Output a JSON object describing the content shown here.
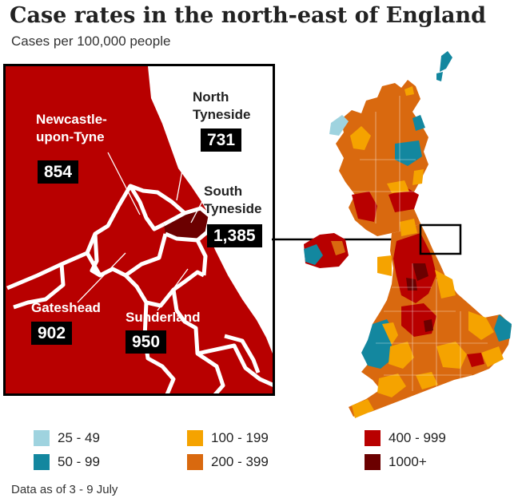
{
  "title": "Case rates in the north-east of England",
  "subtitle": "Cases per 100,000 people",
  "source": "Data as of 3 - 9 July",
  "colors": {
    "band_25_49": "#9fd3df",
    "band_50_99": "#13879f",
    "band_100_199": "#f5a300",
    "band_200_399": "#d9690f",
    "band_400_999": "#b80000",
    "band_1000_plus": "#6b0000"
  },
  "inset": {
    "areas": [
      {
        "name_line1": "Newcastle-",
        "name_line2": "upon-Tyne",
        "value": "854"
      },
      {
        "name_line1": "North",
        "name_line2": "Tyneside",
        "value": "731"
      },
      {
        "name_line1": "South",
        "name_line2": "Tyneside",
        "value": "1,385"
      },
      {
        "name_line1": "Gateshead",
        "name_line2": "",
        "value": "902"
      },
      {
        "name_line1": "Sunderland",
        "name_line2": "",
        "value": "950"
      }
    ]
  },
  "legend": [
    {
      "label": "25 - 49",
      "color": "#9fd3df"
    },
    {
      "label": "50 - 99",
      "color": "#13879f"
    },
    {
      "label": "100 - 199",
      "color": "#f5a300"
    },
    {
      "label": "200 - 399",
      "color": "#d9690f"
    },
    {
      "label": "400 - 999",
      "color": "#b80000"
    },
    {
      "label": "1000+",
      "color": "#6b0000"
    }
  ]
}
